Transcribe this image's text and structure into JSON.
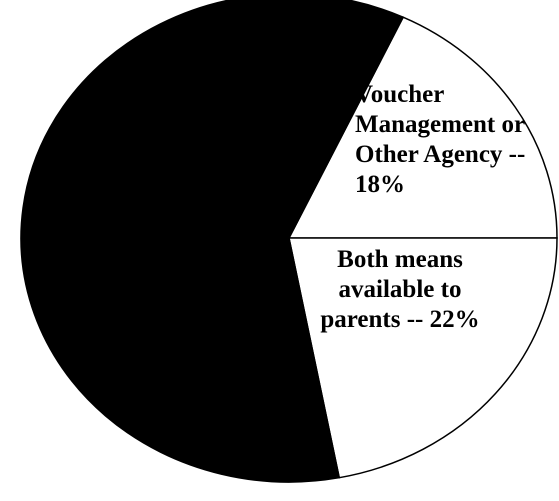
{
  "chart_data": {
    "type": "pie",
    "categories": [
      "Voucher Management or Other Agency --",
      "Both means available to parents --",
      null
    ],
    "values": [
      18,
      22,
      60
    ],
    "value_labels": [
      "18%",
      "22%",
      null
    ],
    "colors": [
      "#ffffff",
      "#ffffff",
      "#000000"
    ]
  }
}
